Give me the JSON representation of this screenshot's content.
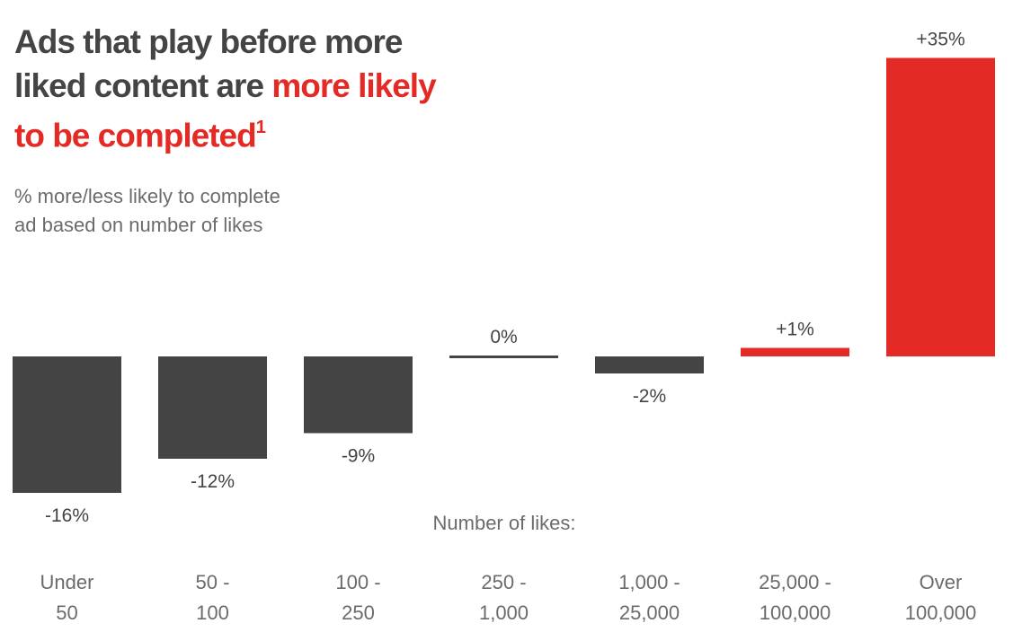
{
  "title": {
    "line1": "Ads that play before more",
    "line2_plain": "liked content are",
    "line2_highlight": "more likely",
    "line3_highlight": "to be completed",
    "footnote": "1"
  },
  "subtitle": {
    "line1": "% more/less likely to complete",
    "line2": "ad based on number of likes"
  },
  "colors": {
    "negative": "#444444",
    "positive": "#e42a25",
    "title_highlight": "#e42a25",
    "text": "#444444",
    "muted_text": "#6b6b6b"
  },
  "chart_data": {
    "type": "bar",
    "xlabel": "Number of likes:",
    "categories": [
      [
        "Under",
        "50"
      ],
      [
        "50 -",
        "100"
      ],
      [
        "100 -",
        "250"
      ],
      [
        "250 -",
        "1,000"
      ],
      [
        "1,000 -",
        "25,000"
      ],
      [
        "25,000 -",
        "100,000"
      ],
      [
        "Over",
        "100,000"
      ]
    ],
    "values": [
      -16,
      -12,
      -9,
      0,
      -2,
      1,
      35
    ],
    "value_labels": [
      "-16%",
      "-12%",
      "-9%",
      "0%",
      "-2%",
      "+1%",
      "+35%"
    ],
    "grid": false,
    "legend": "none"
  }
}
